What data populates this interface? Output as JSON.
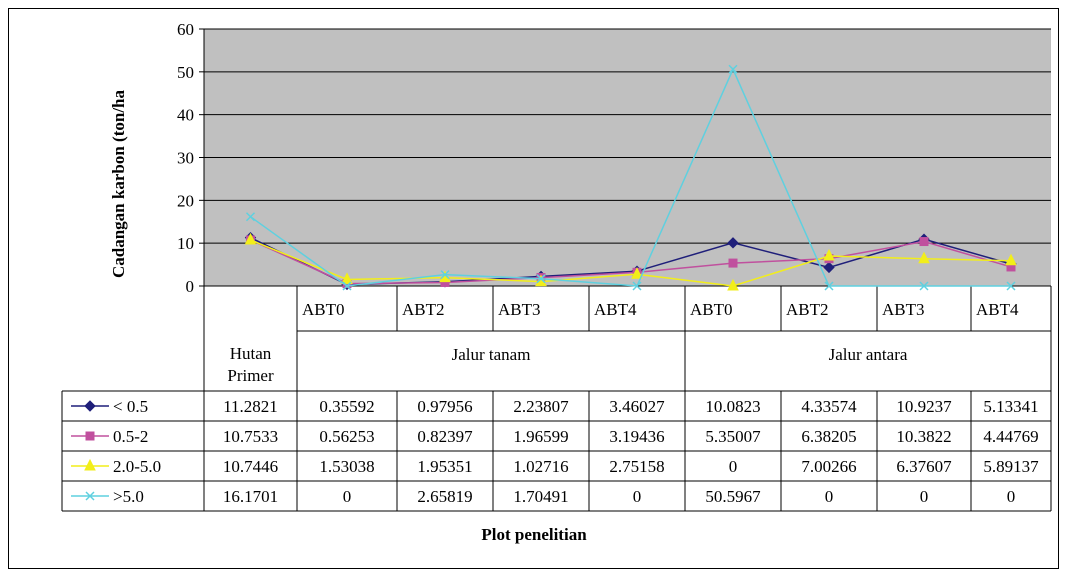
{
  "chart_data": {
    "type": "line",
    "xlabel": "Plot penelitian",
    "ylabel": "Cadangan karbon (ton/ha",
    "ylim": [
      0,
      60
    ],
    "yticks": [
      0,
      10,
      20,
      30,
      40,
      50,
      60
    ],
    "grid": true,
    "legend": "table-left",
    "categories": [
      "",
      "ABT0",
      "ABT2",
      "ABT3",
      "ABT4",
      "ABT0",
      "ABT2",
      "ABT3",
      "ABT4"
    ],
    "groups": [
      {
        "label": "Hutan Primer",
        "span": [
          0,
          0
        ]
      },
      {
        "label": "Jalur tanam",
        "span": [
          1,
          4
        ]
      },
      {
        "label": "Jalur antara",
        "span": [
          5,
          8
        ]
      }
    ],
    "series": [
      {
        "name": "< 0.5",
        "color": "#1f1f7a",
        "marker": "diamond",
        "values": [
          11.2821,
          0.35592,
          0.97956,
          2.23807,
          3.46027,
          10.0823,
          4.33574,
          10.9237,
          5.13341
        ],
        "labels": [
          "11.2821",
          "0.35592",
          "0.97956",
          "2.23807",
          "3.46027",
          "10.0823",
          "4.33574",
          "10.9237",
          "5.13341"
        ]
      },
      {
        "name": "0.5-2",
        "color": "#c0509e",
        "marker": "square",
        "values": [
          10.7533,
          0.56253,
          0.82397,
          1.96599,
          3.19436,
          5.35007,
          6.38205,
          10.3822,
          4.44769
        ],
        "labels": [
          "10.7533",
          "0.56253",
          "0.82397",
          "1.96599",
          "3.19436",
          "5.35007",
          "6.38205",
          "10.3822",
          "4.44769"
        ]
      },
      {
        "name": "2.0-5.0",
        "color": "#f2ee1a",
        "marker": "triangle",
        "values": [
          10.7446,
          1.53038,
          1.95351,
          1.02716,
          2.75158,
          0,
          7.00266,
          6.37607,
          5.89137
        ],
        "labels": [
          "10.7446",
          "1.53038",
          "1.95351",
          "1.02716",
          "2.75158",
          "0",
          "7.00266",
          "6.37607",
          "5.89137"
        ]
      },
      {
        "name": ">5.0",
        "color": "#5fd0df",
        "marker": "x",
        "values": [
          16.1701,
          0,
          2.65819,
          1.70491,
          0,
          50.5967,
          0,
          0,
          0
        ],
        "labels": [
          "16.1701",
          "0",
          "2.65819",
          "1.70491",
          "0",
          "50.5967",
          "0",
          "0",
          "0"
        ]
      }
    ]
  }
}
